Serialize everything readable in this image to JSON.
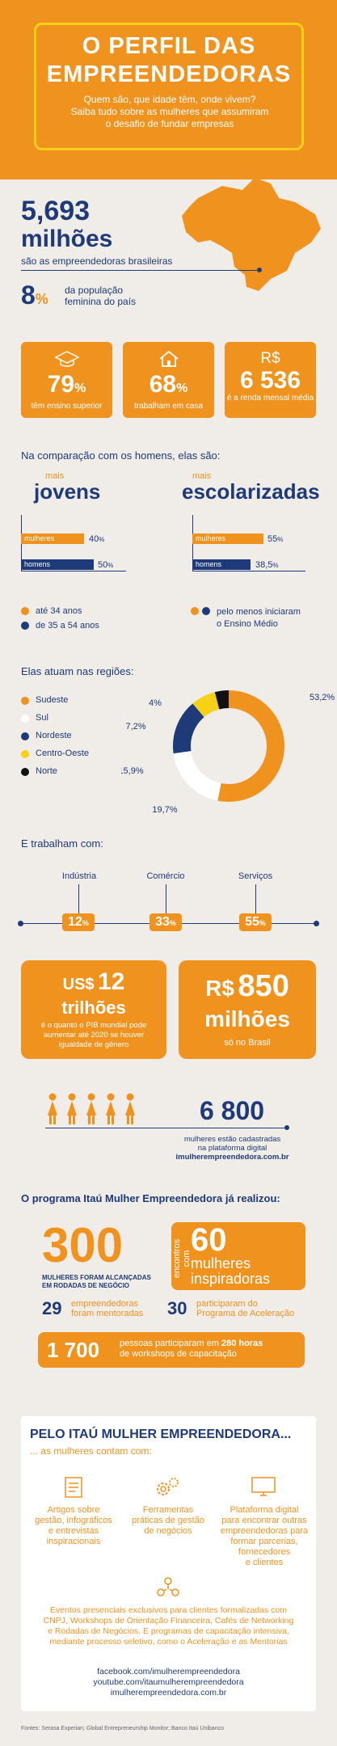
{
  "header": {
    "title_line1": "O PERFIL DAS",
    "title_line2": "EMPREENDEDORAS",
    "subtitle_line1": "Quem são, que idade têm, onde vivem?",
    "subtitle_line2": "Saiba tudo sobre as mulheres que assumiram",
    "subtitle_line3": "o desafio de fundar empresas"
  },
  "intro": {
    "number": "5,693",
    "number_unit": "milhões",
    "number_caption": "são as empreendedoras brasileiras",
    "pct_value": "8",
    "pct_symbol": "%",
    "pct_caption_line1": "da população",
    "pct_caption_line2": "feminina do país"
  },
  "stats": [
    {
      "icon": "graduation-cap-icon",
      "value": "79",
      "unit": "%",
      "caption": "têm ensino superior"
    },
    {
      "icon": "house-icon",
      "value": "68",
      "unit": "%",
      "caption": "trabalham em casa"
    },
    {
      "icon_text": "R$",
      "value": "6 536",
      "unit": "",
      "caption": "é a renda mensal média"
    }
  ],
  "comparison": {
    "heading": "Na comparação com os homens, elas são:",
    "left": {
      "kicker": "mais",
      "title": "jovens",
      "bars": [
        {
          "label": "mulheres",
          "value": "40",
          "unit": "%",
          "pct": 40,
          "color": "#f0921e"
        },
        {
          "label": "homens",
          "value": "50",
          "unit": "%",
          "pct": 50,
          "color": "#1e3a78"
        }
      ],
      "legend": [
        {
          "text": "até 34 anos",
          "color": "#f0921e"
        },
        {
          "text": "de 35 a 54 anos",
          "color": "#1e3a78"
        }
      ]
    },
    "right": {
      "kicker": "mais",
      "title": "escolarizadas",
      "bars": [
        {
          "label": "mulheres",
          "value": "55",
          "unit": "%",
          "pct": 55,
          "color": "#f0921e"
        },
        {
          "label": "homens",
          "value": "38,5",
          "unit": "%",
          "pct": 38.5,
          "color": "#1e3a78"
        }
      ],
      "legend_line1": "pelo menos iniciaram",
      "legend_line2": "o Ensino Médio"
    }
  },
  "regions": {
    "heading": "Elas atuam nas regiões:",
    "items": [
      {
        "name": "Sudeste",
        "color": "#f0921e",
        "value": 53.2,
        "label": "53,2%"
      },
      {
        "name": "Sul",
        "color": "#ffffff",
        "value": 19.7,
        "label": "19,7%"
      },
      {
        "name": "Nordeste",
        "color": "#1e3a78",
        "value": 15.9,
        "label": "15,9%"
      },
      {
        "name": "Centro-Oeste",
        "color": "#f7d118",
        "value": 7.2,
        "label": "7,2%"
      },
      {
        "name": "Norte",
        "color": "#111111",
        "value": 4,
        "label": "4%"
      }
    ]
  },
  "chart_data": {
    "type": "pie",
    "title": "Elas atuam nas regiões:",
    "categories": [
      "Sudeste",
      "Sul",
      "Nordeste",
      "Centro-Oeste",
      "Norte"
    ],
    "values": [
      53.2,
      19.7,
      15.9,
      7.2,
      4
    ],
    "labels": [
      "53,2%",
      "19,7%",
      "15,9%",
      "7,2%",
      "4%"
    ],
    "legend": "left"
  },
  "sectors": {
    "heading": "E trabalham com:",
    "items": [
      {
        "name": "Indústria",
        "value": "12",
        "unit": "%"
      },
      {
        "name": "Comércio",
        "value": "33",
        "unit": "%"
      },
      {
        "name": "Serviços",
        "value": "55",
        "unit": "%"
      }
    ]
  },
  "money": {
    "left_prefix": "US$",
    "left_value": "12",
    "left_unit": "trilhões",
    "left_caption_line1": "é o quanto o PIB mundial pode",
    "left_caption_line2": "aumentar até 2020 se houver",
    "left_caption_line3": "igualdade de gênero",
    "right_prefix": "R$",
    "right_value": "850",
    "right_unit": "milhões",
    "right_caption": "só no Brasil"
  },
  "platform": {
    "number": "6 800",
    "caption_line1": "mulheres estão cadastradas",
    "caption_line2": "na plataforma digital",
    "url": "imulherempreendedora.com.br"
  },
  "program": {
    "heading": "O programa Itaú Mulher Empreendedora já realizou:",
    "big_value": "300",
    "big_caption_line1": "MULHERES FORAM ALCANÇADAS",
    "big_caption_line2": "EM RODADAS DE NEGÓCIO",
    "encontros_label": "encontros com",
    "encontros_value": "60",
    "encontros_caption_line1": "mulheres",
    "encontros_caption_line2": "inspiradoras",
    "mentor_value": "29",
    "mentor_line1": "empreendedoras",
    "mentor_line2": "foram mentoradas",
    "accel_value": "30",
    "accel_line1": "participaram do",
    "accel_line2": "Programa de Aceleração",
    "workshop_value": "1 700",
    "workshop_line1_a": "pessoas participaram em ",
    "workshop_line1_b": "280 horas",
    "workshop_line2": "de workshops de capacitação"
  },
  "benefits": {
    "title": "PELO ITAÚ MULHER EMPREENDEDORA...",
    "subtitle": "... as mulheres contam com:",
    "items": [
      {
        "icon": "document-icon",
        "lines": [
          "Artigos sobre",
          "gestão, infográficos",
          "e entrevistas",
          "inspiracionais"
        ]
      },
      {
        "icon": "gears-icon",
        "lines": [
          "Ferramentas",
          "práticas de gestão",
          "de negócios"
        ]
      },
      {
        "icon": "monitor-icon",
        "lines": [
          "Plataforma digital",
          "para encontrar outras",
          "empreendedoras para",
          "formar parcerias,",
          "fornecedores",
          "e clientes"
        ]
      }
    ],
    "events_icon": "people-network-icon",
    "events_lines": [
      "Eventos presenciais exclusivos para clientes formalizadas com",
      "CNPJ, Workshops de Orientação Financeira, Cafés de Networking",
      "e Rodadas de Negócios. E programas de capacitação intensiva,",
      "mediante processo seletivo, como o Aceleração e as Mentorias"
    ],
    "links": [
      "facebook.com/imulherempreendedora",
      "youtube.com/itaumulherempreendedora",
      "imulherempreendedora.com.br"
    ]
  },
  "footer": {
    "sources": "Fontes: Serasa Experian; Global Entrepreneurship Monitor; Banco Itaú Unibanco"
  }
}
